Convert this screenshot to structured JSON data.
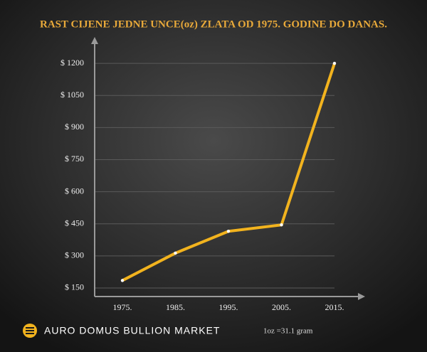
{
  "chart_data": {
    "type": "line",
    "title": "RAST CIJENE JEDNE UNCE(oz) ZLATA OD 1975. GODINE DO DANAS.",
    "categories": [
      "1975.",
      "1985.",
      "1995.",
      "2005.",
      "2015."
    ],
    "values": [
      185,
      313,
      415,
      445,
      1200
    ],
    "color": "#f2b31e",
    "ylim": [
      110,
      1280
    ],
    "yticks": [
      {
        "value": 150,
        "label": "$ 150"
      },
      {
        "value": 300,
        "label": "$ 300"
      },
      {
        "value": 450,
        "label": "$ 450"
      },
      {
        "value": 600,
        "label": "$ 600"
      },
      {
        "value": 750,
        "label": "$ 750"
      },
      {
        "value": 900,
        "label": "$ 900"
      },
      {
        "value": 1050,
        "label": "$ 1050"
      },
      {
        "value": 1200,
        "label": "$ 1200"
      }
    ],
    "grid": true
  },
  "footer": {
    "brand": "AURO DOMUS BULLION MARKET",
    "note": "1oz =31.1 gram"
  }
}
